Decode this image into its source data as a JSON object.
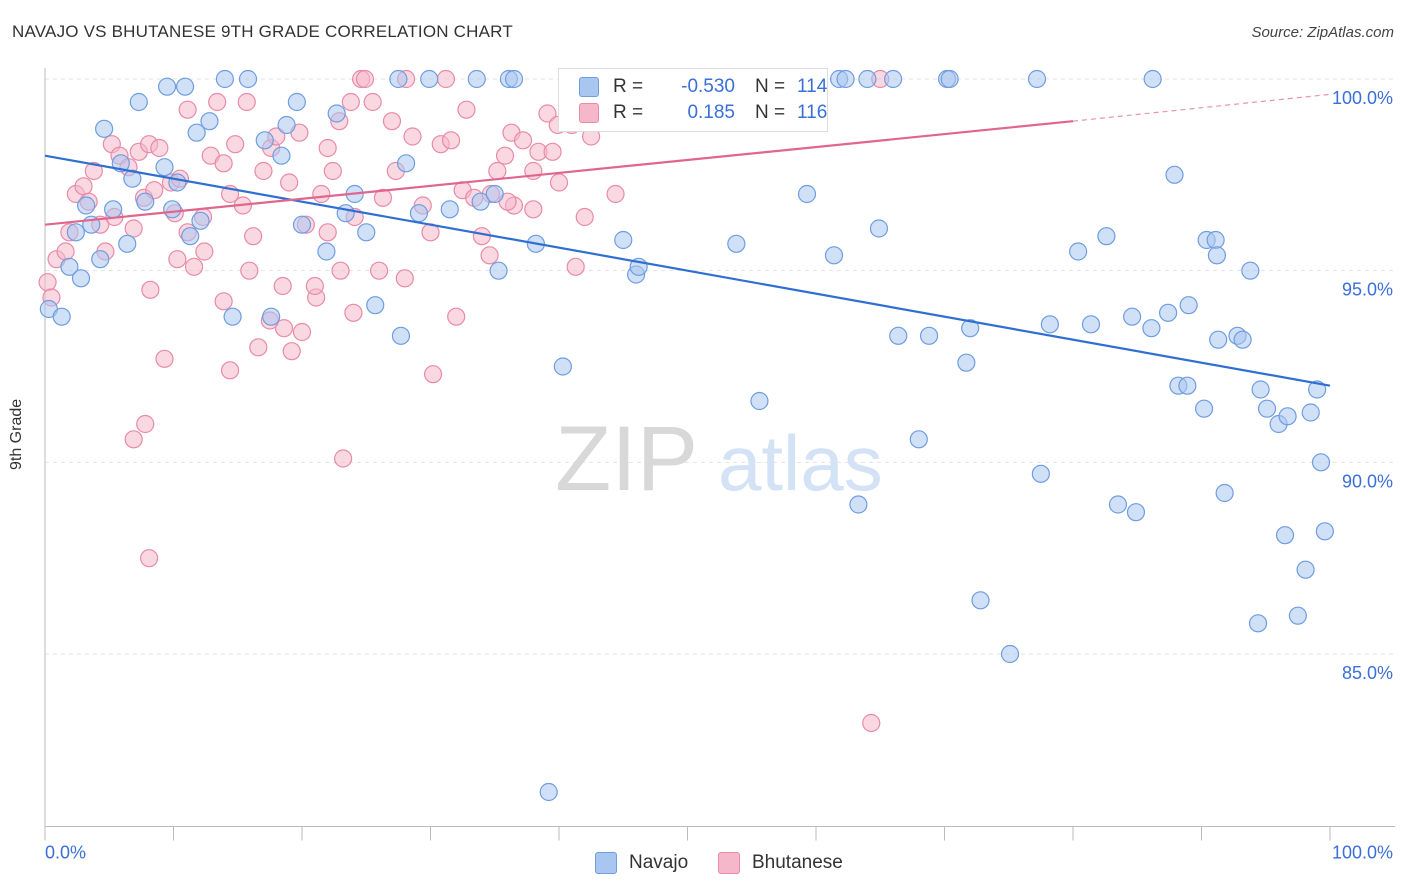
{
  "title": "NAVAJO VS BHUTANESE 9TH GRADE CORRELATION CHART",
  "source": "Source: ZipAtlas.com",
  "watermark": {
    "zip": "ZIP",
    "atlas": "atlas"
  },
  "colors": {
    "navajo_fill": "#a9c6f0",
    "navajo_stroke": "#6e9de0",
    "navajo_line": "#2f6fd2",
    "bhutanese_fill": "#f5b8cb",
    "bhutanese_stroke": "#e88aa8",
    "bhutanese_line": "#e06690",
    "tick_text": "#3a6fd8",
    "grid": "#e3e3e3"
  },
  "legend": {
    "r_label": "R =",
    "n_label": "N =",
    "navajo": {
      "r": "-0.530",
      "n": "114"
    },
    "bhutanese": {
      "r": "0.185",
      "n": "116"
    }
  },
  "bottom_legend": [
    "Navajo",
    "Bhutanese"
  ],
  "chart_data": {
    "type": "scatter",
    "title": "NAVAJO VS BHUTANESE 9TH GRADE CORRELATION CHART",
    "xlabel": "",
    "ylabel": "9th Grade",
    "xlim": [
      0,
      100
    ],
    "ylim": [
      80.5,
      100.6
    ],
    "x_tick_labels": [
      "0.0%",
      "100.0%"
    ],
    "y_ticks": [
      85,
      90,
      95,
      100
    ],
    "y_tick_labels": [
      "85.0%",
      "90.0%",
      "95.0%",
      "100.0%"
    ],
    "grid": true,
    "legend_position": "top-center",
    "series": [
      {
        "name": "Navajo",
        "trend": {
          "x": [
            0,
            100
          ],
          "y": [
            98.0,
            92.0
          ]
        },
        "points": [
          [
            0.3,
            94.0
          ],
          [
            1.3,
            93.8
          ],
          [
            1.9,
            95.1
          ],
          [
            2.4,
            96.0
          ],
          [
            2.8,
            94.8
          ],
          [
            3.2,
            96.7
          ],
          [
            3.6,
            96.2
          ],
          [
            4.3,
            95.3
          ],
          [
            4.6,
            98.7
          ],
          [
            5.3,
            96.6
          ],
          [
            5.9,
            97.8
          ],
          [
            6.4,
            95.7
          ],
          [
            6.8,
            97.4
          ],
          [
            7.3,
            99.4
          ],
          [
            7.8,
            96.8
          ],
          [
            9.3,
            97.7
          ],
          [
            9.5,
            99.8
          ],
          [
            9.9,
            96.6
          ],
          [
            10.3,
            97.3
          ],
          [
            10.9,
            99.8
          ],
          [
            11.3,
            95.9
          ],
          [
            11.8,
            98.6
          ],
          [
            12.1,
            96.3
          ],
          [
            12.8,
            98.9
          ],
          [
            14.0,
            100.0
          ],
          [
            14.6,
            93.8
          ],
          [
            15.8,
            100.0
          ],
          [
            17.1,
            98.4
          ],
          [
            17.6,
            93.8
          ],
          [
            18.4,
            98.0
          ],
          [
            18.8,
            98.8
          ],
          [
            19.6,
            99.4
          ],
          [
            20.0,
            96.2
          ],
          [
            21.9,
            95.5
          ],
          [
            22.7,
            99.1
          ],
          [
            23.4,
            96.5
          ],
          [
            24.1,
            97.0
          ],
          [
            25.0,
            96.0
          ],
          [
            25.7,
            94.1
          ],
          [
            27.5,
            100.0
          ],
          [
            27.7,
            93.3
          ],
          [
            28.1,
            97.8
          ],
          [
            29.1,
            96.5
          ],
          [
            29.9,
            100.0
          ],
          [
            31.5,
            96.6
          ],
          [
            33.6,
            100.0
          ],
          [
            33.9,
            96.8
          ],
          [
            35.0,
            97.0
          ],
          [
            35.3,
            95.0
          ],
          [
            36.1,
            100.0
          ],
          [
            36.5,
            100.0
          ],
          [
            38.2,
            95.7
          ],
          [
            40.3,
            92.5
          ],
          [
            41.1,
            100.0
          ],
          [
            45.0,
            95.8
          ],
          [
            46.0,
            94.9
          ],
          [
            46.2,
            95.1
          ],
          [
            50.7,
            100.0
          ],
          [
            53.5,
            100.0
          ],
          [
            53.8,
            95.7
          ],
          [
            55.6,
            91.6
          ],
          [
            56.7,
            100.0
          ],
          [
            59.3,
            97.0
          ],
          [
            61.4,
            95.4
          ],
          [
            61.8,
            100.0
          ],
          [
            62.3,
            100.0
          ],
          [
            63.3,
            88.9
          ],
          [
            64.0,
            100.0
          ],
          [
            64.9,
            96.1
          ],
          [
            66.0,
            100.0
          ],
          [
            66.4,
            93.3
          ],
          [
            68.0,
            90.6
          ],
          [
            68.8,
            93.3
          ],
          [
            70.2,
            100.0
          ],
          [
            70.4,
            100.0
          ],
          [
            71.7,
            92.6
          ],
          [
            72.0,
            93.5
          ],
          [
            72.8,
            86.4
          ],
          [
            75.1,
            85.0
          ],
          [
            77.2,
            100.0
          ],
          [
            77.5,
            89.7
          ],
          [
            78.2,
            93.6
          ],
          [
            80.4,
            95.5
          ],
          [
            81.4,
            93.6
          ],
          [
            82.6,
            95.9
          ],
          [
            83.5,
            88.9
          ],
          [
            84.6,
            93.8
          ],
          [
            84.9,
            88.7
          ],
          [
            86.1,
            93.5
          ],
          [
            86.2,
            100.0
          ],
          [
            87.4,
            93.9
          ],
          [
            87.9,
            97.5
          ],
          [
            88.2,
            92.0
          ],
          [
            88.9,
            92.0
          ],
          [
            89.0,
            94.1
          ],
          [
            90.2,
            91.4
          ],
          [
            90.4,
            95.8
          ],
          [
            91.1,
            95.8
          ],
          [
            91.2,
            95.4
          ],
          [
            91.3,
            93.2
          ],
          [
            91.8,
            89.2
          ],
          [
            92.8,
            93.3
          ],
          [
            93.2,
            93.2
          ],
          [
            93.8,
            95.0
          ],
          [
            94.4,
            85.8
          ],
          [
            94.6,
            91.9
          ],
          [
            95.1,
            91.4
          ],
          [
            96.0,
            91.0
          ],
          [
            96.5,
            88.1
          ],
          [
            96.7,
            91.2
          ],
          [
            97.5,
            86.0
          ],
          [
            98.1,
            87.2
          ],
          [
            98.5,
            91.3
          ],
          [
            99.0,
            91.9
          ],
          [
            99.3,
            90.0
          ],
          [
            99.6,
            88.2
          ],
          [
            39.2,
            81.4
          ]
        ]
      },
      {
        "name": "Bhutanese",
        "trend": {
          "x": [
            0,
            80
          ],
          "y": [
            96.2,
            98.9
          ]
        },
        "trend_dashed": {
          "x": [
            80,
            100
          ],
          "y": [
            98.9,
            99.6
          ]
        },
        "points": [
          [
            0.2,
            94.7
          ],
          [
            0.5,
            94.3
          ],
          [
            0.9,
            95.3
          ],
          [
            1.6,
            95.5
          ],
          [
            1.9,
            96.0
          ],
          [
            2.4,
            97.0
          ],
          [
            3.0,
            97.2
          ],
          [
            3.4,
            96.8
          ],
          [
            3.8,
            97.6
          ],
          [
            4.3,
            96.2
          ],
          [
            4.7,
            95.5
          ],
          [
            5.2,
            98.3
          ],
          [
            5.4,
            96.4
          ],
          [
            5.8,
            98.0
          ],
          [
            6.5,
            97.7
          ],
          [
            6.9,
            96.1
          ],
          [
            7.3,
            98.1
          ],
          [
            7.7,
            96.9
          ],
          [
            8.1,
            98.3
          ],
          [
            8.5,
            97.1
          ],
          [
            8.9,
            98.2
          ],
          [
            9.3,
            92.7
          ],
          [
            9.8,
            97.3
          ],
          [
            10.1,
            96.5
          ],
          [
            10.5,
            97.4
          ],
          [
            11.1,
            99.2
          ],
          [
            11.6,
            95.1
          ],
          [
            12.3,
            96.4
          ],
          [
            12.4,
            95.5
          ],
          [
            12.9,
            98.0
          ],
          [
            13.4,
            99.4
          ],
          [
            13.9,
            97.8
          ],
          [
            14.4,
            97.0
          ],
          [
            14.8,
            98.3
          ],
          [
            15.4,
            96.7
          ],
          [
            15.7,
            99.4
          ],
          [
            16.2,
            95.9
          ],
          [
            16.6,
            93.0
          ],
          [
            17.0,
            97.6
          ],
          [
            17.6,
            98.2
          ],
          [
            18.0,
            98.5
          ],
          [
            18.5,
            94.6
          ],
          [
            18.6,
            93.5
          ],
          [
            19.0,
            97.3
          ],
          [
            19.8,
            98.6
          ],
          [
            20.0,
            93.4
          ],
          [
            20.3,
            96.2
          ],
          [
            21.1,
            94.3
          ],
          [
            21.5,
            97.0
          ],
          [
            22.0,
            98.2
          ],
          [
            22.4,
            97.6
          ],
          [
            22.9,
            98.9
          ],
          [
            23.2,
            90.1
          ],
          [
            23.8,
            99.4
          ],
          [
            24.1,
            96.4
          ],
          [
            24.6,
            100.0
          ],
          [
            24.9,
            100.0
          ],
          [
            25.5,
            99.4
          ],
          [
            26.3,
            96.9
          ],
          [
            27.0,
            98.9
          ],
          [
            27.3,
            97.6
          ],
          [
            28.1,
            100.0
          ],
          [
            28.6,
            98.5
          ],
          [
            29.4,
            96.7
          ],
          [
            30.2,
            92.3
          ],
          [
            30.8,
            98.3
          ],
          [
            31.2,
            100.0
          ],
          [
            31.6,
            98.4
          ],
          [
            32.5,
            97.1
          ],
          [
            32.8,
            99.2
          ],
          [
            33.4,
            96.9
          ],
          [
            34.6,
            95.4
          ],
          [
            34.7,
            97.0
          ],
          [
            35.2,
            97.6
          ],
          [
            35.8,
            98.0
          ],
          [
            36.3,
            98.6
          ],
          [
            36.5,
            96.7
          ],
          [
            37.2,
            98.4
          ],
          [
            38.0,
            96.6
          ],
          [
            38.4,
            98.1
          ],
          [
            39.1,
            99.1
          ],
          [
            39.5,
            98.1
          ],
          [
            39.9,
            98.8
          ],
          [
            41.0,
            98.8
          ],
          [
            41.3,
            95.1
          ],
          [
            42.5,
            98.5
          ],
          [
            43.6,
            100.0
          ],
          [
            44.4,
            97.0
          ],
          [
            45.8,
            100.0
          ],
          [
            46.3,
            100.0
          ],
          [
            8.2,
            94.5
          ],
          [
            6.9,
            90.6
          ],
          [
            7.8,
            91.0
          ],
          [
            8.1,
            87.5
          ],
          [
            10.3,
            95.3
          ],
          [
            11.1,
            96.0
          ],
          [
            13.9,
            94.2
          ],
          [
            14.4,
            92.4
          ],
          [
            15.9,
            95.0
          ],
          [
            17.5,
            93.7
          ],
          [
            19.2,
            92.9
          ],
          [
            21.0,
            94.6
          ],
          [
            22.0,
            96.0
          ],
          [
            23.0,
            95.0
          ],
          [
            24.0,
            93.9
          ],
          [
            26.0,
            95.0
          ],
          [
            28.0,
            94.8
          ],
          [
            30.0,
            96.0
          ],
          [
            32.0,
            93.8
          ],
          [
            34.0,
            95.9
          ],
          [
            36.0,
            96.8
          ],
          [
            38.0,
            97.6
          ],
          [
            40.0,
            97.3
          ],
          [
            42.0,
            96.4
          ],
          [
            64.3,
            83.2
          ],
          [
            65.0,
            100.0
          ]
        ]
      }
    ]
  }
}
